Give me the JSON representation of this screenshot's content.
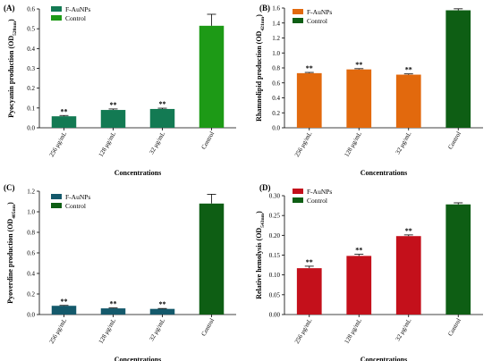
{
  "chart_data": [
    {
      "type": "bar",
      "panel": "(A)",
      "ylabel": "Pyocyanin production (OD",
      "ylabel_sub": "520nm",
      "ylabel_end": ")",
      "xlabel": "Concentrations",
      "categories": [
        "256 μg/mL",
        "128 μg/mL",
        "32 μg/mL",
        "Control"
      ],
      "values": [
        0.058,
        0.09,
        0.095,
        0.515
      ],
      "errors": [
        0.004,
        0.005,
        0.004,
        0.058
      ],
      "significance": [
        "**",
        "**",
        "**",
        ""
      ],
      "bar_colors": [
        "#137a53",
        "#137a53",
        "#137a53",
        "#1d9a16"
      ],
      "legend": [
        {
          "label": "F-AuNPs",
          "color": "#137a53"
        },
        {
          "label": "Control",
          "color": "#1d9a16"
        }
      ],
      "ylim": [
        0,
        0.6
      ],
      "yticks": [
        "0.0",
        "0.1",
        "0.2",
        "0.3",
        "0.4",
        "0.5",
        "0.6"
      ]
    },
    {
      "type": "bar",
      "panel": "(B)",
      "ylabel": "Rhamnolipid production (OD",
      "ylabel_sub": "421nm",
      "ylabel_end": ")",
      "xlabel": "Concentrations",
      "categories": [
        "256 μg/mL",
        "128 μg/mL",
        "32 μg/mL",
        "Control"
      ],
      "values": [
        0.73,
        0.78,
        0.71,
        1.57
      ],
      "errors": [
        0.01,
        0.01,
        0.01,
        0.02
      ],
      "significance": [
        "**",
        "**",
        "**",
        ""
      ],
      "bar_colors": [
        "#e2690d",
        "#e2690d",
        "#e2690d",
        "#0e5e14"
      ],
      "legend": [
        {
          "label": "F-AuNPs",
          "color": "#e2690d"
        },
        {
          "label": "Control",
          "color": "#0e5e14"
        }
      ],
      "ylim": [
        0,
        1.6
      ],
      "yticks": [
        "0.0",
        "0.2",
        "0.4",
        "0.6",
        "0.8",
        "1.0",
        "1.2",
        "1.4",
        "1.6"
      ]
    },
    {
      "type": "bar",
      "panel": "(C)",
      "ylabel": "Pyoverdine production (OD",
      "ylabel_sub": "405nm",
      "ylabel_end": ")",
      "xlabel": "Concentrations",
      "categories": [
        "256 μg/mL",
        "128 μg/mL",
        "32 μg/mL",
        "Control"
      ],
      "values": [
        0.085,
        0.06,
        0.055,
        1.08
      ],
      "errors": [
        0.004,
        0.004,
        0.004,
        0.09
      ],
      "significance": [
        "**",
        "**",
        "**",
        ""
      ],
      "bar_colors": [
        "#14596b",
        "#14596b",
        "#14596b",
        "#0e5e14"
      ],
      "legend": [
        {
          "label": "F-AuNPs",
          "color": "#14596b"
        },
        {
          "label": "Control",
          "color": "#0e5e14"
        }
      ],
      "ylim": [
        0,
        1.2
      ],
      "yticks": [
        "0.0",
        "0.2",
        "0.4",
        "0.6",
        "0.8",
        "1.0",
        "1.2"
      ]
    },
    {
      "type": "bar",
      "panel": "(D)",
      "ylabel": "Relative hemolysis (OD",
      "ylabel_sub": "543nm",
      "ylabel_end": ")",
      "xlabel": "Concentrations",
      "categories": [
        "256 μg/mL",
        "128 μg/mL",
        "32 μg/mL",
        "Control"
      ],
      "values": [
        0.117,
        0.148,
        0.198,
        0.278
      ],
      "errors": [
        0.005,
        0.004,
        0.003,
        0.004
      ],
      "significance": [
        "**",
        "**",
        "**",
        ""
      ],
      "bar_colors": [
        "#c4101b",
        "#c4101b",
        "#c4101b",
        "#0e5e14"
      ],
      "legend": [
        {
          "label": "F-AuNPs",
          "color": "#c4101b"
        },
        {
          "label": "Control",
          "color": "#0e5e14"
        }
      ],
      "ylim": [
        0,
        0.3
      ],
      "yticks": [
        "0.00",
        "0.05",
        "0.10",
        "0.15",
        "0.20",
        "0.25",
        "0.30"
      ]
    }
  ]
}
